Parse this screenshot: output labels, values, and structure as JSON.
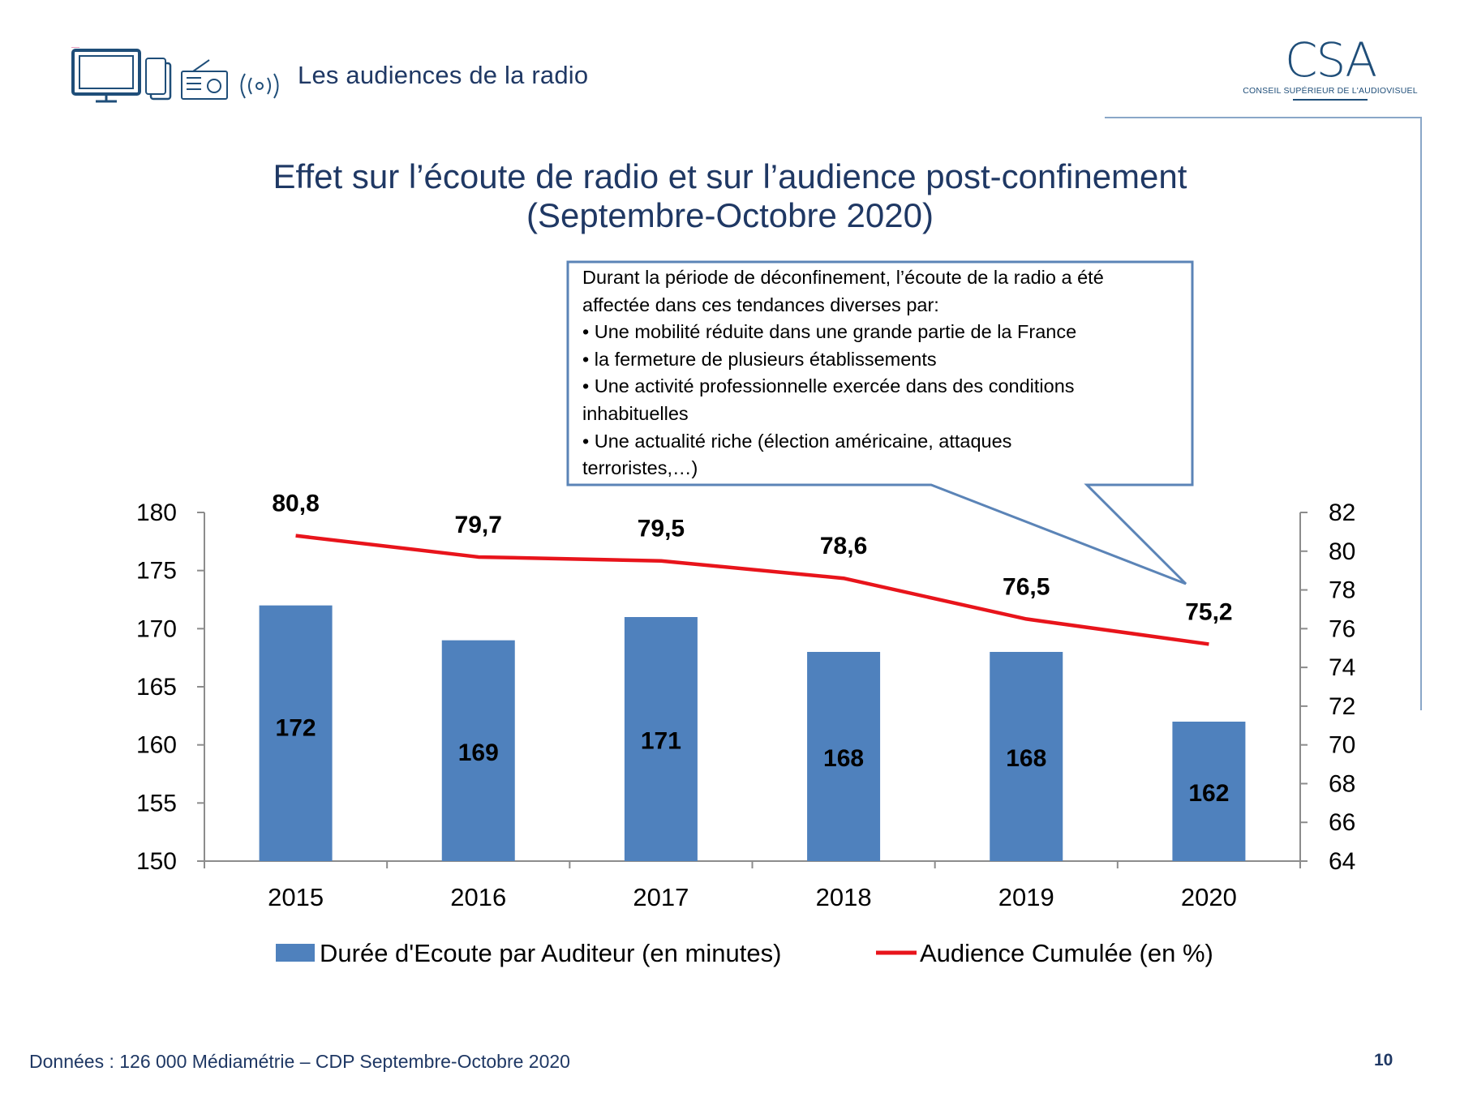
{
  "header": {
    "title": "Les audiences de la radio"
  },
  "logo": {
    "mark": "CSA",
    "subtitle": "CONSEIL SUPÉRIEUR DE L'AUDIOVISUEL"
  },
  "title": {
    "line1": "Effet sur l’écoute de radio et sur l’audience post-confinement",
    "line2": "(Septembre-Octobre 2020)"
  },
  "callout": {
    "lines": [
      "Durant la période de déconfinement, l’écoute de la radio a été",
      "affectée dans ces tendances diverses par:",
      "• Une mobilité réduite dans une grande partie de la France",
      "• la fermeture de plusieurs établissements",
      "• Une activité professionnelle exercée dans des conditions",
      "inhabituelles",
      "• Une actualité riche (élection américaine, attaques",
      "terroristes,…)"
    ]
  },
  "chart_data": {
    "type": "bar",
    "categories": [
      "2015",
      "2016",
      "2017",
      "2018",
      "2019",
      "2020"
    ],
    "series": [
      {
        "name": "Durée d'Ecoute par Auditeur (en minutes)",
        "type": "bar",
        "axis": "left",
        "values": [
          172,
          169,
          171,
          168,
          168,
          162
        ],
        "labels": [
          "172",
          "169",
          "171",
          "168",
          "168",
          "162"
        ],
        "color": "#4f81bd"
      },
      {
        "name": "Audience Cumulée (en %)",
        "type": "line",
        "axis": "right",
        "values": [
          80.8,
          79.7,
          79.5,
          78.6,
          76.5,
          75.2
        ],
        "labels": [
          "80,8",
          "79,7",
          "79,5",
          "78,6",
          "76,5",
          "75,2"
        ],
        "color": "#e8141b"
      }
    ],
    "y_left": {
      "min": 150,
      "max": 180,
      "ticks": [
        "150",
        "155",
        "160",
        "165",
        "170",
        "175",
        "180"
      ]
    },
    "y_right": {
      "min": 64,
      "max": 82,
      "ticks": [
        "64",
        "66",
        "68",
        "70",
        "72",
        "74",
        "76",
        "78",
        "80",
        "82"
      ]
    },
    "legend": {
      "position": "bottom"
    },
    "grid": false
  },
  "footer": {
    "source": "Données : 126 000 Médiamétrie – CDP Septembre-Octobre 2020",
    "page": "10"
  }
}
